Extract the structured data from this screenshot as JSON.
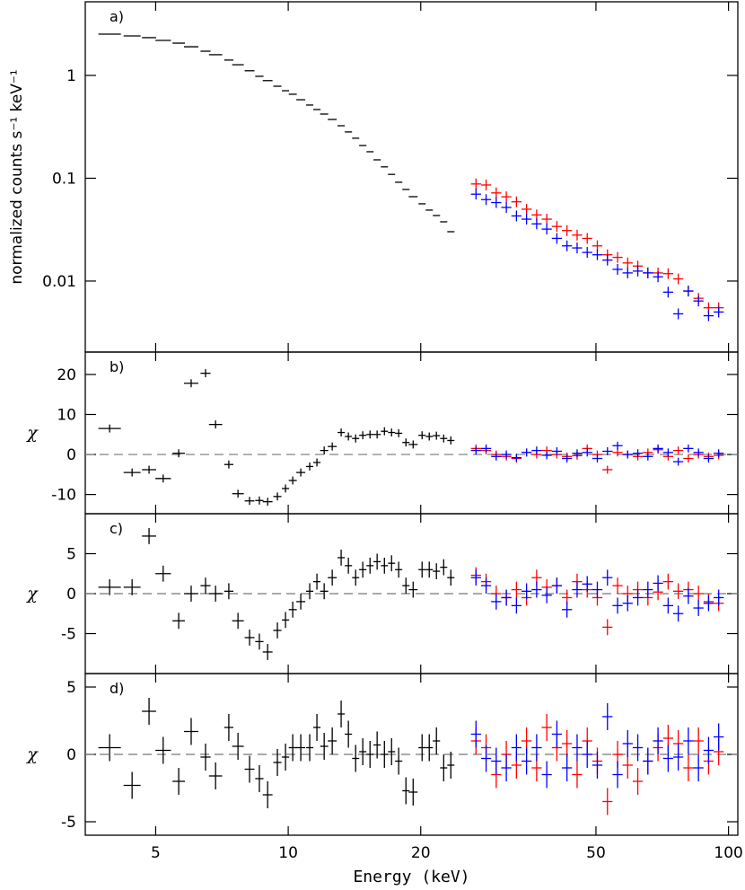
{
  "chart_data": [
    {
      "type": "errorbar",
      "label": "a)",
      "ylabel": "normalized counts s⁻¹ keV⁻¹",
      "ylog": true,
      "ylim": [
        0.00204,
        5.2
      ],
      "yticks": [
        0.01,
        0.1,
        1
      ],
      "series": [
        {
          "color": "#000000",
          "x": [
            3.93,
            4.42,
            4.83,
            5.2,
            5.64,
            6.02,
            6.49,
            6.84,
            7.33,
            7.69,
            8.17,
            8.6,
            8.98,
            9.45,
            9.86,
            10.24,
            10.68,
            11.19,
            11.62,
            12.07,
            12.59,
            13.19,
            13.7,
            14.23,
            14.77,
            15.34,
            15.92,
            16.54,
            17.17,
            17.82,
            18.51,
            19.22,
            20.14,
            20.91,
            21.71,
            22.55,
            23.41
          ],
          "values": [
            2.52,
            2.42,
            2.33,
            2.19,
            2.06,
            1.9,
            1.72,
            1.59,
            1.41,
            1.27,
            1.11,
            0.98,
            0.89,
            0.785,
            0.71,
            0.656,
            0.58,
            0.515,
            0.466,
            0.421,
            0.373,
            0.324,
            0.282,
            0.245,
            0.208,
            0.181,
            0.151,
            0.129,
            0.109,
            0.0914,
            0.0778,
            0.0662,
            0.0564,
            0.049,
            0.0434,
            0.0377,
            0.0302
          ]
        },
        {
          "color": "#ff0000",
          "x": [
            26.7,
            28.15,
            29.68,
            31.29,
            32.99,
            34.78,
            36.67,
            38.66,
            40.76,
            42.97,
            45.31,
            47.77,
            50.36,
            53.1,
            55.98,
            59.02,
            62.23,
            65.61,
            69.17,
            72.93,
            76.89,
            81.06,
            85.47,
            90.11,
            95.0
          ],
          "values": [
            0.088,
            0.086,
            0.072,
            0.066,
            0.059,
            0.05,
            0.044,
            0.04,
            0.034,
            0.031,
            0.028,
            0.026,
            0.022,
            0.018,
            0.017,
            0.015,
            0.014,
            0.012,
            0.012,
            0.0118,
            0.0105,
            0.008,
            0.0068,
            0.0055,
            0.0055
          ]
        },
        {
          "color": "#0000ff",
          "x": [
            26.7,
            28.15,
            29.68,
            31.29,
            32.99,
            34.78,
            36.67,
            38.66,
            40.76,
            42.97,
            45.31,
            47.77,
            50.36,
            53.1,
            55.98,
            59.02,
            62.23,
            65.61,
            69.17,
            72.93,
            76.89,
            81.06,
            85.47,
            90.11,
            95.0
          ],
          "values": [
            0.07,
            0.062,
            0.058,
            0.052,
            0.043,
            0.04,
            0.036,
            0.032,
            0.026,
            0.022,
            0.021,
            0.019,
            0.018,
            0.016,
            0.013,
            0.012,
            0.0125,
            0.012,
            0.011,
            0.0078,
            0.0048,
            0.008,
            0.0064,
            0.0046,
            0.005
          ]
        }
      ]
    },
    {
      "type": "errorbar",
      "label": "b)",
      "ylabel": "χ",
      "ylim": [
        -14.8,
        25.6
      ],
      "yticks": [
        -10,
        0,
        10,
        20
      ],
      "yerr": 1,
      "reference_line": 0,
      "series": [
        {
          "color": "#000000",
          "x": [
            3.93,
            4.42,
            4.83,
            5.2,
            5.64,
            6.02,
            6.49,
            6.84,
            7.33,
            7.69,
            8.17,
            8.6,
            8.98,
            9.45,
            9.86,
            10.24,
            10.68,
            11.19,
            11.62,
            12.07,
            12.59,
            13.19,
            13.7,
            14.23,
            14.77,
            15.34,
            15.92,
            16.54,
            17.17,
            17.82,
            18.51,
            19.22,
            20.14,
            20.91,
            21.71,
            22.55,
            23.41
          ],
          "values": [
            6.5,
            -4.5,
            -3.8,
            -6,
            0.3,
            17.8,
            20.3,
            7.5,
            -2.5,
            -9.8,
            -11.6,
            -11.5,
            -11.8,
            -10.5,
            -8.5,
            -6.5,
            -4.5,
            -3,
            -2,
            1,
            2,
            5.5,
            4.5,
            4,
            4.8,
            5,
            5,
            5.8,
            5.5,
            5.3,
            3,
            2.5,
            4.8,
            4.5,
            4.7,
            4,
            3.5
          ]
        },
        {
          "color": "#ff0000",
          "x": [
            26.7,
            28.15,
            29.68,
            31.29,
            32.99,
            34.78,
            36.67,
            38.66,
            40.76,
            42.97,
            45.31,
            47.77,
            50.36,
            53.1,
            55.98,
            59.02,
            62.23,
            65.61,
            69.17,
            72.93,
            76.89,
            81.06,
            85.47,
            90.11,
            95.0
          ],
          "values": [
            1.5,
            1,
            0,
            -0.5,
            -1,
            0.5,
            0,
            1,
            0,
            -0.5,
            -0.3,
            1.5,
            0,
            -3.8,
            0.5,
            0,
            -0.5,
            0.5,
            1.2,
            -0.5,
            1,
            -1,
            0,
            -0.5,
            -0.2
          ]
        },
        {
          "color": "#0000ff",
          "x": [
            26.7,
            28.15,
            29.68,
            31.29,
            32.99,
            34.78,
            36.67,
            38.66,
            40.76,
            42.97,
            45.31,
            47.77,
            50.36,
            53.1,
            55.98,
            59.02,
            62.23,
            65.61,
            69.17,
            72.93,
            76.89,
            81.06,
            85.47,
            90.11,
            95.0
          ],
          "values": [
            1,
            1.5,
            -0.5,
            0,
            -0.8,
            0.5,
            1,
            -0.2,
            0.8,
            -1,
            0.3,
            0.5,
            -1,
            0.8,
            2.2,
            0,
            0.3,
            -0.5,
            1.5,
            0.5,
            -1.8,
            1.5,
            0.5,
            -1,
            0.3
          ]
        }
      ]
    },
    {
      "type": "errorbar",
      "label": "c)",
      "ylabel": "χ",
      "ylim": [
        -10,
        10
      ],
      "yticks": [
        -5,
        0,
        5
      ],
      "yerr": 1,
      "reference_line": 0,
      "series": [
        {
          "color": "#000000",
          "x": [
            3.93,
            4.42,
            4.83,
            5.2,
            5.64,
            6.02,
            6.49,
            6.84,
            7.33,
            7.69,
            8.17,
            8.6,
            8.98,
            9.45,
            9.86,
            10.24,
            10.68,
            11.19,
            11.62,
            12.07,
            12.59,
            13.19,
            13.7,
            14.23,
            14.77,
            15.34,
            15.92,
            16.54,
            17.17,
            17.82,
            18.51,
            19.22,
            20.14,
            20.91,
            21.71,
            22.55,
            23.41
          ],
          "values": [
            0.8,
            0.8,
            7.2,
            2.5,
            -3.4,
            0,
            1,
            0,
            0.3,
            -3.4,
            -5.5,
            -6,
            -7.3,
            -4.6,
            -3.3,
            -2,
            -1,
            0.3,
            1.5,
            0.3,
            2,
            4.5,
            3.5,
            2,
            3,
            3.5,
            4,
            3.5,
            3.8,
            3,
            1,
            0.5,
            3,
            3,
            2.8,
            3.3,
            2
          ]
        },
        {
          "color": "#ff0000",
          "x": [
            26.7,
            28.15,
            29.68,
            31.29,
            32.99,
            34.78,
            36.67,
            38.66,
            40.76,
            42.97,
            45.31,
            47.77,
            50.36,
            53.1,
            55.98,
            59.02,
            62.23,
            65.61,
            69.17,
            72.93,
            76.89,
            81.06,
            85.47,
            90.11,
            95.0
          ],
          "values": [
            2.3,
            1.5,
            0,
            -0.5,
            0.5,
            -0.5,
            2,
            0.8,
            1,
            -0.5,
            1.5,
            0.5,
            -0.5,
            -4.2,
            1,
            0,
            0.5,
            -0.5,
            0.2,
            1.5,
            0.3,
            0.5,
            0,
            -1,
            -1.2
          ]
        },
        {
          "color": "#0000ff",
          "x": [
            26.7,
            28.15,
            29.68,
            31.29,
            32.99,
            34.78,
            36.67,
            38.66,
            40.76,
            42.97,
            45.31,
            47.77,
            50.36,
            53.1,
            55.98,
            59.02,
            62.23,
            65.61,
            69.17,
            72.93,
            76.89,
            81.06,
            85.47,
            90.11,
            95.0
          ],
          "values": [
            2,
            1,
            -1,
            -0.5,
            -1.5,
            0.3,
            0.5,
            -0.2,
            1,
            -2,
            0.5,
            1.2,
            0.5,
            2,
            -1.5,
            -1.2,
            -0.5,
            0.5,
            1.3,
            -1.5,
            -2.5,
            -0.3,
            -1.8,
            -1.2,
            -0.5
          ]
        }
      ]
    },
    {
      "type": "errorbar",
      "label": "d)",
      "ylabel": "χ",
      "ylim": [
        -6,
        6
      ],
      "yticks": [
        -5,
        0,
        5
      ],
      "yerr": 1,
      "reference_line": 0,
      "xlabel": "Energy (keV)",
      "xlog": true,
      "xlim": [
        3.46,
        105
      ],
      "xticks": [
        5,
        10,
        20,
        50,
        100
      ],
      "series": [
        {
          "color": "#000000",
          "x": [
            3.93,
            4.42,
            4.83,
            5.2,
            5.64,
            6.02,
            6.49,
            6.84,
            7.33,
            7.69,
            8.17,
            8.6,
            8.98,
            9.45,
            9.86,
            10.24,
            10.68,
            11.19,
            11.62,
            12.07,
            12.59,
            13.19,
            13.7,
            14.23,
            14.77,
            15.34,
            15.92,
            16.54,
            17.17,
            17.82,
            18.51,
            19.22,
            20.14,
            20.91,
            21.71,
            22.55,
            23.41
          ],
          "values": [
            0.5,
            -2.3,
            3.2,
            0.3,
            -2,
            1.7,
            -0.2,
            -1.6,
            2,
            0.6,
            -1.1,
            -1.8,
            -3,
            -0.6,
            -0.2,
            0.5,
            0.5,
            0.5,
            2,
            0.6,
            1,
            3,
            1.5,
            -0.3,
            0.2,
            0,
            0.7,
            0,
            0.2,
            -0.5,
            -2.7,
            -2.8,
            0.5,
            0.5,
            1,
            -1,
            -0.8
          ]
        },
        {
          "color": "#ff0000",
          "x": [
            26.7,
            28.15,
            29.68,
            31.29,
            32.99,
            34.78,
            36.67,
            38.66,
            40.76,
            42.97,
            45.31,
            47.77,
            50.36,
            53.1,
            55.98,
            59.02,
            62.23,
            65.61,
            69.17,
            72.93,
            76.89,
            81.06,
            85.47,
            90.11,
            95.0
          ],
          "values": [
            1,
            0.5,
            -1.5,
            0,
            -0.8,
            1,
            -1,
            2,
            0.5,
            0.8,
            -1.5,
            1,
            -0.5,
            -3.5,
            0,
            -0.8,
            -2,
            -0.5,
            0.5,
            1.2,
            0.8,
            -1,
            1,
            -0.5,
            0.2
          ]
        },
        {
          "color": "#0000ff",
          "x": [
            26.7,
            28.15,
            29.68,
            31.29,
            32.99,
            34.78,
            36.67,
            38.66,
            40.76,
            42.97,
            45.31,
            47.77,
            50.36,
            53.1,
            55.98,
            59.02,
            62.23,
            65.61,
            69.17,
            72.93,
            76.89,
            81.06,
            85.47,
            90.11,
            95.0
          ],
          "values": [
            1.5,
            -0.3,
            -0.5,
            -1,
            0.5,
            -0.5,
            0.5,
            -1.5,
            1.5,
            -1,
            0.5,
            0,
            -0.8,
            2.8,
            -1.5,
            0.8,
            0.5,
            -0.5,
            1,
            -0.3,
            -0.2,
            1,
            -1,
            0.3,
            1.3
          ]
        }
      ]
    }
  ]
}
